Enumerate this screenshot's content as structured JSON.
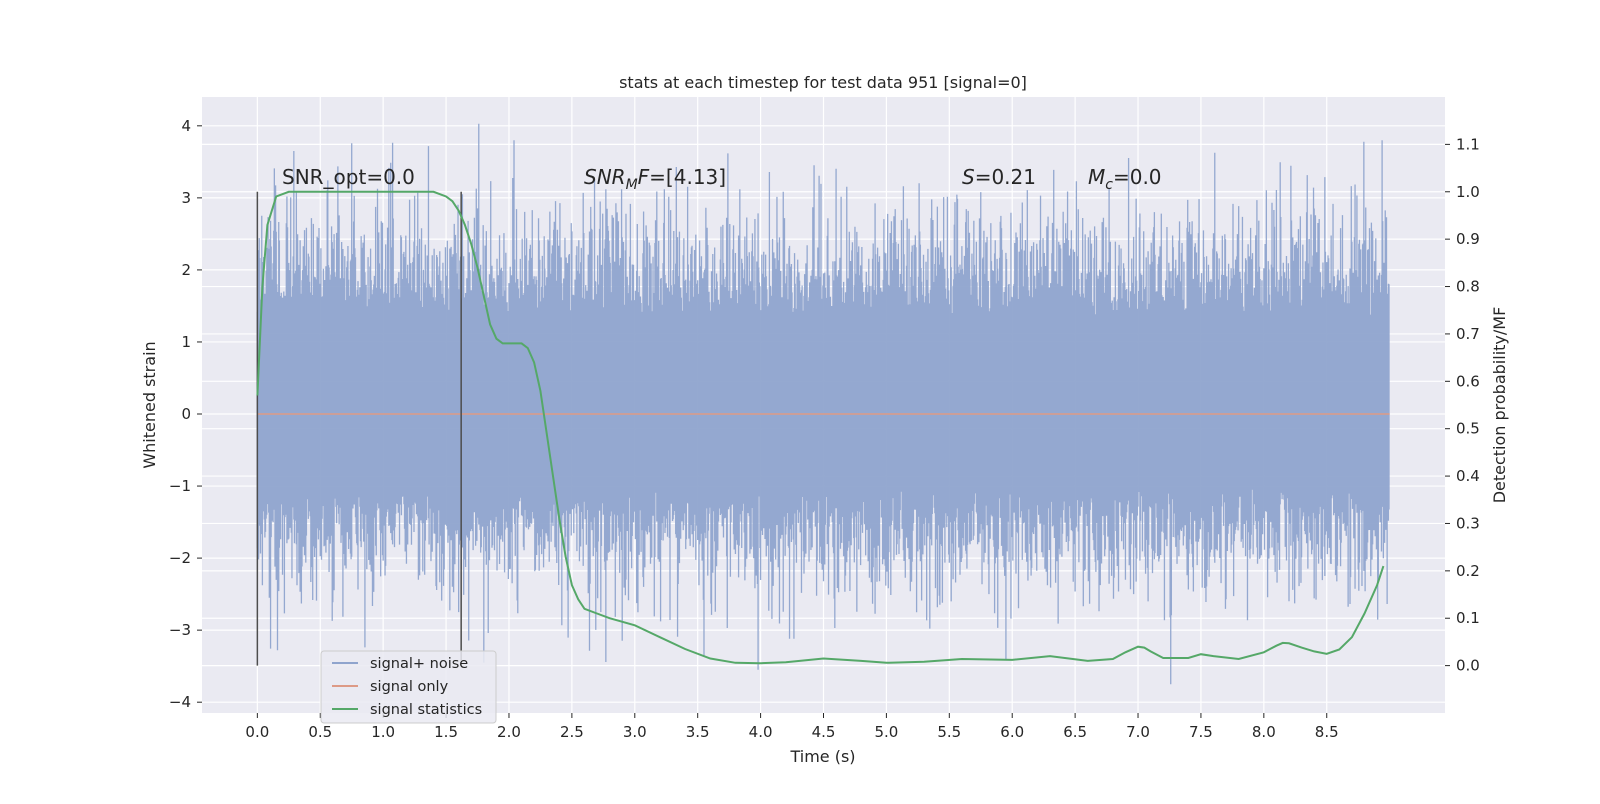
{
  "chart_data": {
    "type": "line",
    "title": "stats at each timestep for test data 951 [signal=0]",
    "xlabel": "Time (s)",
    "ylabel": "Whitened strain",
    "y2label": "Detection probability/MF",
    "xlim": [
      -0.44,
      9.44
    ],
    "ylim": [
      -4.15,
      4.4
    ],
    "y2lim": [
      -0.1,
      1.2
    ],
    "grid": true,
    "xticks": [
      0.0,
      0.5,
      1.0,
      1.5,
      2.0,
      2.5,
      3.0,
      3.5,
      4.0,
      4.5,
      5.0,
      5.5,
      6.0,
      6.5,
      7.0,
      7.5,
      8.0,
      8.5
    ],
    "xtick_labels": [
      "0.0",
      "0.5",
      "1.0",
      "1.5",
      "2.0",
      "2.5",
      "3.0",
      "3.5",
      "4.0",
      "4.5",
      "5.0",
      "5.5",
      "6.0",
      "6.5",
      "7.0",
      "7.5",
      "8.0",
      "8.5"
    ],
    "yticks": [
      4,
      3,
      2,
      1,
      0,
      -1,
      -2,
      -3,
      -4
    ],
    "ytick_labels": [
      "4",
      "3",
      "2",
      "1",
      "0",
      "−1",
      "−2",
      "−3",
      "−4"
    ],
    "y2ticks": [
      1.1,
      1.0,
      0.9,
      0.8,
      0.7,
      0.6,
      0.5,
      0.4,
      0.3,
      0.2,
      0.1,
      0.0
    ],
    "y2tick_labels": [
      "1.1",
      "1.0",
      "0.9",
      "0.8",
      "0.7",
      "0.6",
      "0.5",
      "0.4",
      "0.3",
      "0.2",
      "0.1",
      "0.0"
    ],
    "noise": {
      "t_start": 0.0,
      "t_end": 9.0,
      "samples": 1800,
      "band": [
        -1.05,
        1.35
      ],
      "peak_max": 4.03,
      "peak_min": -3.75
    },
    "series": [
      {
        "name": "signal+ noise",
        "color": "#8fa4cd",
        "kind": "strain",
        "axis": "left"
      },
      {
        "name": "signal only",
        "color": "#dd9a86",
        "kind": "strain",
        "axis": "left",
        "x": [
          0.0,
          9.0
        ],
        "values": [
          0.0,
          0.0
        ]
      },
      {
        "name": "signal statistics",
        "color": "#55a868",
        "kind": "probability",
        "axis": "right",
        "x": [
          0.0,
          0.04,
          0.08,
          0.15,
          0.25,
          0.4,
          0.6,
          1.0,
          1.2,
          1.4,
          1.5,
          1.55,
          1.6,
          1.65,
          1.7,
          1.75,
          1.8,
          1.85,
          1.9,
          1.95,
          2.0,
          2.1,
          2.15,
          2.2,
          2.25,
          2.3,
          2.35,
          2.4,
          2.45,
          2.5,
          2.55,
          2.6,
          2.7,
          2.8,
          3.0,
          3.2,
          3.4,
          3.6,
          3.8,
          4.0,
          4.2,
          4.5,
          4.8,
          5.0,
          5.3,
          5.6,
          6.0,
          6.3,
          6.6,
          6.8,
          6.9,
          7.0,
          7.05,
          7.1,
          7.2,
          7.4,
          7.5,
          7.6,
          7.8,
          8.0,
          8.1,
          8.15,
          8.2,
          8.3,
          8.4,
          8.5,
          8.6,
          8.7,
          8.8,
          8.9,
          8.95
        ],
        "values": [
          0.57,
          0.8,
          0.93,
          0.99,
          1.0,
          1.0,
          1.0,
          1.0,
          1.0,
          1.0,
          0.99,
          0.98,
          0.96,
          0.93,
          0.89,
          0.84,
          0.78,
          0.72,
          0.69,
          0.68,
          0.68,
          0.68,
          0.67,
          0.64,
          0.58,
          0.49,
          0.4,
          0.31,
          0.23,
          0.17,
          0.14,
          0.12,
          0.11,
          0.1,
          0.085,
          0.06,
          0.035,
          0.015,
          0.006,
          0.005,
          0.007,
          0.015,
          0.01,
          0.006,
          0.008,
          0.014,
          0.012,
          0.02,
          0.01,
          0.014,
          0.028,
          0.04,
          0.038,
          0.03,
          0.016,
          0.016,
          0.024,
          0.02,
          0.014,
          0.028,
          0.042,
          0.048,
          0.047,
          0.038,
          0.03,
          0.025,
          0.034,
          0.06,
          0.11,
          0.17,
          0.21
        ]
      }
    ],
    "vlines": [
      0.0,
      1.62
    ],
    "annotations": {
      "snr_opt": "SNR_opt=0.0",
      "snr_mf_prefix": "SNR",
      "snr_mf_sub": "M",
      "snr_mf_mid": "F",
      "snr_mf_value": "=[4.13]",
      "s_var": "S",
      "s_value": "=0.21",
      "mc_var": "M",
      "mc_sub": "c",
      "mc_value": "=0.0"
    },
    "legend": {
      "position": "lower-left",
      "entries": [
        "signal+ noise",
        "signal only",
        "signal statistics"
      ]
    }
  }
}
